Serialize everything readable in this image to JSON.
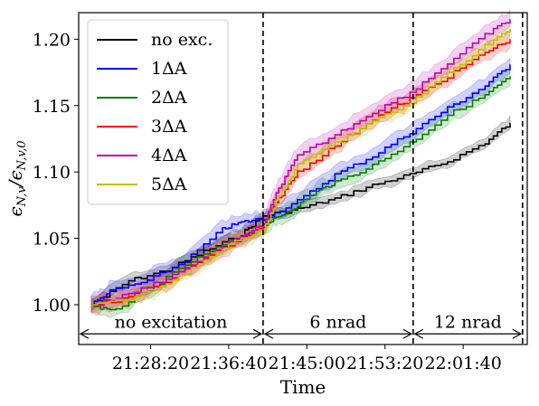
{
  "chart_data": {
    "type": "line",
    "title": "",
    "xlabel": "Time",
    "ylabel": "ϵN,v/ϵN,v,0",
    "ylabel_parts": {
      "main": "ϵ",
      "sub1": "N,v",
      "slash": "/ϵ",
      "sub2": "N,v,0"
    },
    "xlim": [
      "21:20:40",
      "22:08:30"
    ],
    "ylim": [
      0.97,
      1.22
    ],
    "x_ticks": [
      "21:28:20",
      "21:36:40",
      "21:45:00",
      "21:53:20",
      "22:01:40"
    ],
    "y_ticks": [
      "1.00",
      "1.05",
      "1.10",
      "1.15",
      "1.20"
    ],
    "legend_position": "top-left",
    "grid": false,
    "series": [
      {
        "name": "no exc.",
        "color": "#000000",
        "x": [
          "21:22:00",
          "21:26:00",
          "21:30:00",
          "21:34:00",
          "21:38:00",
          "21:40:20",
          "21:44:00",
          "21:48:00",
          "21:52:00",
          "21:56:00",
          "22:00:00",
          "22:04:00",
          "22:06:40"
        ],
        "y": [
          1.0,
          1.018,
          1.026,
          1.04,
          1.053,
          1.067,
          1.072,
          1.08,
          1.09,
          1.098,
          1.108,
          1.122,
          1.137
        ]
      },
      {
        "name": "1ΔA",
        "color": "#0000ff",
        "x": [
          "21:22:00",
          "21:24:00",
          "21:28:00",
          "21:32:00",
          "21:36:00",
          "21:38:00",
          "21:40:20",
          "21:44:00",
          "21:48:00",
          "21:52:00",
          "21:56:00",
          "22:00:00",
          "22:04:00",
          "22:06:40"
        ],
        "y": [
          1.0,
          1.01,
          1.018,
          1.033,
          1.057,
          1.062,
          1.065,
          1.078,
          1.098,
          1.112,
          1.13,
          1.148,
          1.165,
          1.181
        ]
      },
      {
        "name": "2ΔA",
        "color": "#008000",
        "x": [
          "21:22:00",
          "21:24:00",
          "21:28:00",
          "21:32:00",
          "21:36:00",
          "21:40:20",
          "21:42:00",
          "21:44:00",
          "21:46:00",
          "21:48:00",
          "21:52:00",
          "21:56:00",
          "22:00:00",
          "22:04:00",
          "22:06:40"
        ],
        "y": [
          1.0,
          0.995,
          1.01,
          1.03,
          1.045,
          1.06,
          1.066,
          1.075,
          1.085,
          1.092,
          1.105,
          1.122,
          1.143,
          1.158,
          1.172
        ]
      },
      {
        "name": "3ΔA",
        "color": "#ff0000",
        "x": [
          "21:22:00",
          "21:26:00",
          "21:30:00",
          "21:34:00",
          "21:38:00",
          "21:40:20",
          "21:42:00",
          "21:44:00",
          "21:48:00",
          "21:52:00",
          "21:56:00",
          "22:00:00",
          "22:04:00",
          "22:06:40"
        ],
        "y": [
          1.0,
          1.005,
          1.018,
          1.035,
          1.05,
          1.058,
          1.08,
          1.1,
          1.12,
          1.14,
          1.155,
          1.172,
          1.19,
          1.2
        ]
      },
      {
        "name": "4ΔA",
        "color": "#bf00bf",
        "x": [
          "21:22:00",
          "21:26:00",
          "21:30:00",
          "21:34:00",
          "21:38:00",
          "21:40:20",
          "21:42:00",
          "21:44:00",
          "21:48:00",
          "21:52:00",
          "21:56:00",
          "22:00:00",
          "22:04:00",
          "22:06:40"
        ],
        "y": [
          1.0,
          1.008,
          1.02,
          1.035,
          1.052,
          1.06,
          1.088,
          1.112,
          1.128,
          1.145,
          1.16,
          1.182,
          1.203,
          1.215
        ]
      },
      {
        "name": "5ΔA",
        "color": "#bfbf00",
        "x": [
          "21:22:00",
          "21:26:00",
          "21:30:00",
          "21:34:00",
          "21:38:00",
          "21:40:20",
          "21:42:00",
          "21:44:00",
          "21:48:00",
          "21:52:00",
          "21:56:00",
          "22:00:00",
          "22:04:00",
          "22:06:40"
        ],
        "y": [
          1.0,
          1.004,
          1.016,
          1.033,
          1.05,
          1.056,
          1.082,
          1.105,
          1.122,
          1.138,
          1.152,
          1.175,
          1.195,
          1.208
        ]
      }
    ],
    "vlines": [
      "21:40:20",
      "21:56:20",
      "22:08:00"
    ],
    "annotations": [
      {
        "text": "no excitation",
        "from": "21:20:40",
        "to": "21:40:20",
        "y": 0.978
      },
      {
        "text": "6 nrad",
        "from": "21:40:20",
        "to": "21:56:20",
        "y": 0.978
      },
      {
        "text": "12 nrad",
        "from": "21:56:20",
        "to": "22:08:00",
        "y": 0.978
      }
    ]
  }
}
